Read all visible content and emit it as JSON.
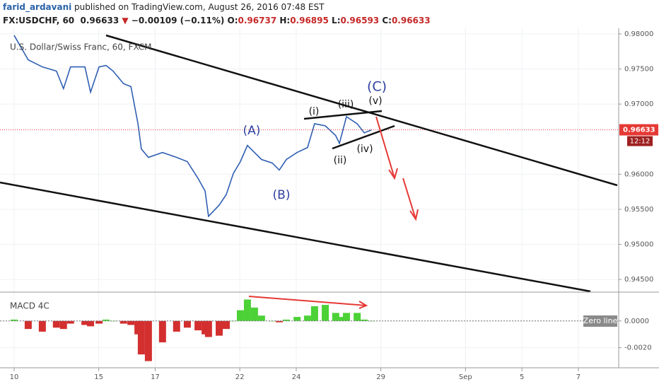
{
  "header": {
    "author": "farid_ardavani",
    "published": "published on TradingView.com, August 26, 2016 07:48 EST",
    "symbol": "FX:USDCHF, 60",
    "last": "0.96633",
    "arrow": "▼",
    "change": "−0.00109 (−0.11%)",
    "ohlc": [
      {
        "label": "O:",
        "value": "0.96737"
      },
      {
        "label": "H:",
        "value": "0.96895"
      },
      {
        "label": "L:",
        "value": "0.96593"
      },
      {
        "label": "C:",
        "value": "0.96633"
      }
    ]
  },
  "chart_data": [
    {
      "type": "line",
      "title": "U.S. Dollar/Swiss Franc, 60, FXCM",
      "x": [
        0.0,
        0.5,
        1.0,
        1.5,
        1.75,
        2.0,
        2.51,
        2.71,
        3.01,
        3.26,
        3.51,
        3.88,
        4.14,
        4.39,
        4.51,
        4.76,
        5.26,
        5.76,
        6.14,
        6.52,
        6.77,
        6.89,
        7.27,
        7.52,
        7.77,
        8.02,
        8.27,
        8.52,
        8.77,
        9.15,
        9.4,
        9.65,
        10.03,
        10.4,
        10.65,
        11.03,
        11.4,
        11.53,
        11.78,
        12.16,
        12.41,
        12.66
      ],
      "series": [
        {
          "name": "USDCHF",
          "color": "#2f5fb3",
          "values": [
            0.9798,
            0.9763,
            0.9753,
            0.9747,
            0.9722,
            0.9753,
            0.9753,
            0.9717,
            0.9753,
            0.9755,
            0.9747,
            0.9729,
            0.9725,
            0.9672,
            0.9636,
            0.9624,
            0.9631,
            0.9624,
            0.9618,
            0.9594,
            0.9576,
            0.954,
            0.9556,
            0.9571,
            0.9601,
            0.9618,
            0.9641,
            0.9631,
            0.9621,
            0.9616,
            0.9606,
            0.9621,
            0.9631,
            0.9638,
            0.9672,
            0.9669,
            0.9655,
            0.9644,
            0.9682,
            0.9672,
            0.9659,
            0.9663
          ]
        }
      ],
      "xlim": [
        -0.5,
        21.43
      ],
      "ylim": [
        0.9433,
        0.9808
      ],
      "yticks": [
        {
          "value": 0.98,
          "label": "0.98000"
        },
        {
          "value": 0.975,
          "label": "0.97500"
        },
        {
          "value": 0.97,
          "label": "0.97000"
        },
        {
          "value": 0.96,
          "label": "0.96000"
        },
        {
          "value": 0.955,
          "label": "0.95500"
        },
        {
          "value": 0.95,
          "label": "0.95000"
        },
        {
          "value": 0.945,
          "label": "0.94500"
        }
      ],
      "current_price": 0.96633,
      "current_color": "#e53935",
      "countdown": "12:12",
      "annotations": [
        "(A)",
        "(B)",
        "(C)",
        "(i)",
        "(ii)",
        "(iii)",
        "(iv)",
        "(v)"
      ]
    },
    {
      "type": "bar",
      "title": "MACD 4C",
      "zero_tag": "Zero line",
      "x": [
        0.0,
        0.5,
        1.0,
        1.5,
        1.75,
        2.0,
        2.51,
        2.71,
        3.01,
        3.26,
        3.51,
        3.88,
        4.14,
        4.39,
        4.51,
        4.76,
        5.26,
        5.76,
        6.14,
        6.52,
        6.77,
        6.89,
        7.27,
        7.52,
        7.77,
        8.02,
        8.27,
        8.52,
        8.77,
        9.15,
        9.4,
        9.65,
        10.03,
        10.4,
        10.65,
        11.03,
        11.4,
        11.53,
        11.78,
        12.16,
        12.41,
        12.66
      ],
      "values": [
        0.0001,
        -0.0006,
        -0.0008,
        -0.0005,
        -0.0006,
        -0.0002,
        -0.0003,
        -0.0004,
        -0.0002,
        0.0001,
        0.0,
        -0.0002,
        -0.0003,
        -0.001,
        -0.0025,
        -0.003,
        -0.0016,
        -0.0008,
        -0.0005,
        -0.0007,
        -0.001,
        -0.0012,
        -0.0011,
        -0.0006,
        0.0,
        0.0008,
        0.0016,
        0.001,
        0.0004,
        0.0,
        -0.0001,
        0.0001,
        0.0003,
        0.0004,
        0.0011,
        0.0012,
        0.0006,
        0.0003,
        0.0006,
        0.0006,
        0.0001,
        0.0
      ],
      "positive_color": "#4cd137",
      "negative_color": "#d32f2f",
      "xlim": [
        -0.5,
        21.43
      ],
      "ylim": [
        -0.0035,
        0.00205
      ],
      "yticks": [
        {
          "value": 0,
          "label": "0.0000"
        },
        {
          "value": -0.002,
          "label": "-0.0020"
        }
      ],
      "xticks": [
        {
          "value": 0,
          "label": "10"
        },
        {
          "value": 3,
          "label": "15"
        },
        {
          "value": 5,
          "label": "17"
        },
        {
          "value": 8,
          "label": "22"
        },
        {
          "value": 10,
          "label": "24"
        },
        {
          "value": 13,
          "label": "29"
        },
        {
          "value": 16,
          "label": "Sep"
        },
        {
          "value": 18,
          "label": "5"
        },
        {
          "value": 20,
          "label": "7"
        }
      ]
    }
  ]
}
